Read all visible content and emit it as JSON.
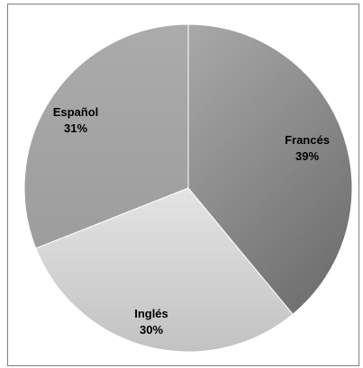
{
  "chart_data": {
    "type": "pie",
    "title": "",
    "start_angle_deg": 0,
    "direction": "clockwise",
    "slices": [
      {
        "label": "Francés",
        "value": 39,
        "value_label": "39%",
        "color": "#8f8f8f"
      },
      {
        "label": "Inglés",
        "value": 30,
        "value_label": "30%",
        "color": "#d2d2d2"
      },
      {
        "label": "Español",
        "value": 31,
        "value_label": "31%",
        "color": "#a6a6a6"
      }
    ],
    "legend": "none",
    "data_labels": "inside"
  }
}
